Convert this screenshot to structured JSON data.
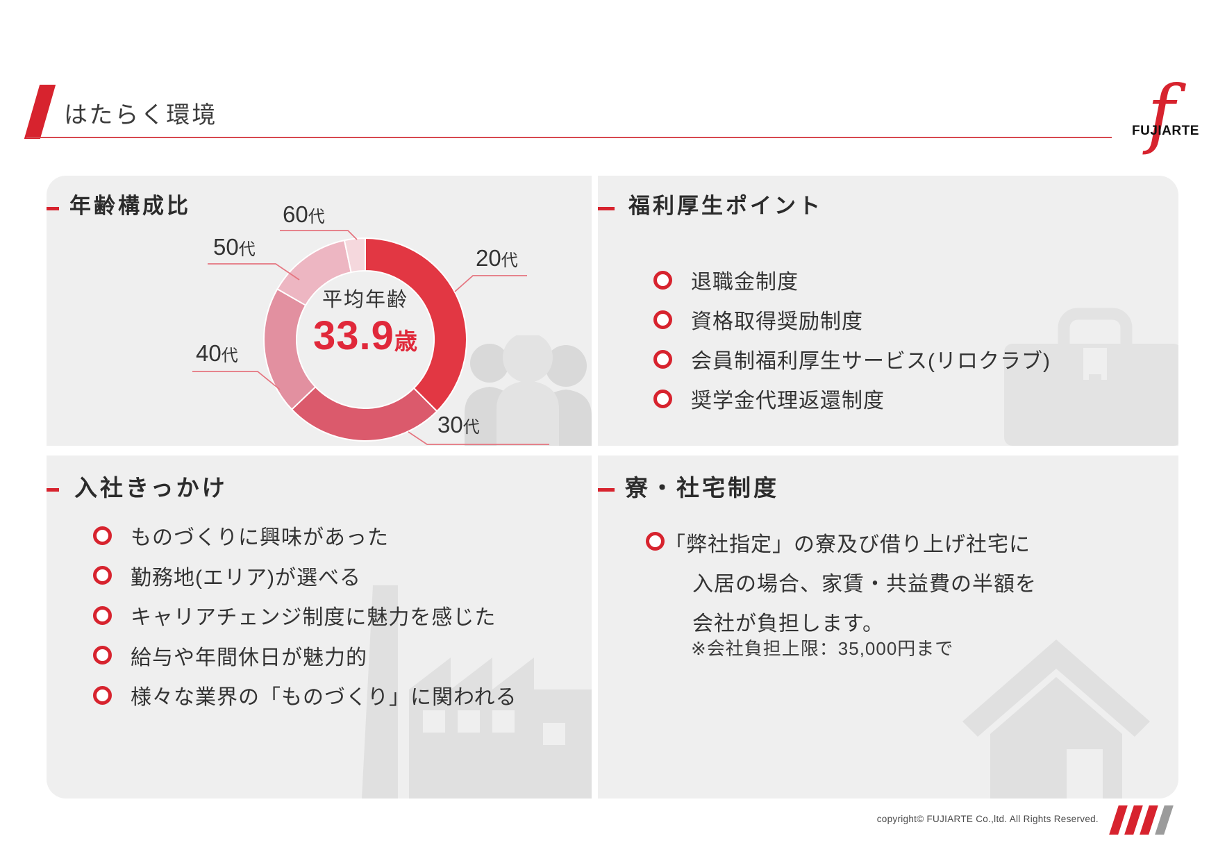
{
  "page": {
    "title": "はたらく環境"
  },
  "logo": {
    "text": "FUJIARTE",
    "mark": "f"
  },
  "colors": {
    "accent": "#d7232e",
    "value_red": "#e0283a",
    "panel_bg": "#efefef",
    "leader_line": "#e5747f",
    "silhouette": "#e0e0e0",
    "slash_colors": [
      "#d7232e",
      "#d7232e",
      "#d7232e",
      "#9b9b9b"
    ]
  },
  "chart_data": {
    "type": "pie",
    "donut": true,
    "inner_radius_ratio": 0.68,
    "title": "年齢構成比",
    "categories": [
      "20代",
      "30代",
      "40代",
      "50代",
      "60代"
    ],
    "values": [
      37.5,
      25.4,
      20.4,
      13.4,
      3.3
    ],
    "unit": "%",
    "colors": [
      "#e23743",
      "#db5a6c",
      "#e290a0",
      "#edb6c2",
      "#f5d8dd"
    ],
    "center_label": "平均年齢",
    "center_value": "33.9",
    "center_unit": "歳",
    "legend_position": "callout-labels",
    "start_angle_deg": 0,
    "direction": "clockwise"
  },
  "panels": {
    "age": {
      "title": "年齢構成比"
    },
    "welfare": {
      "title": "福利厚生ポイント",
      "items": [
        "退職金制度",
        "資格取得奨励制度",
        "会員制福利厚生サービス(リロクラブ)",
        "奨学金代理返還制度"
      ]
    },
    "reasons": {
      "title": "入社きっかけ",
      "items": [
        "ものづくりに興味があった",
        "勤務地(エリア)が選べる",
        "キャリアチェンジ制度に魅力を感じた",
        "給与や年間休日が魅力的",
        "様々な業界の「ものづくり」に関われる"
      ]
    },
    "housing": {
      "title": "寮・社宅制度",
      "lines": [
        "「弊社指定」の寮及び借り上げ社宅に",
        "入居の場合、家賃・共益費の半額を",
        "会社が負担します。"
      ],
      "note": "※会社負担上限：35,000円まで"
    }
  },
  "footer": {
    "copyright": "copyright© FUJIARTE Co.,ltd. All Rights Reserved."
  }
}
